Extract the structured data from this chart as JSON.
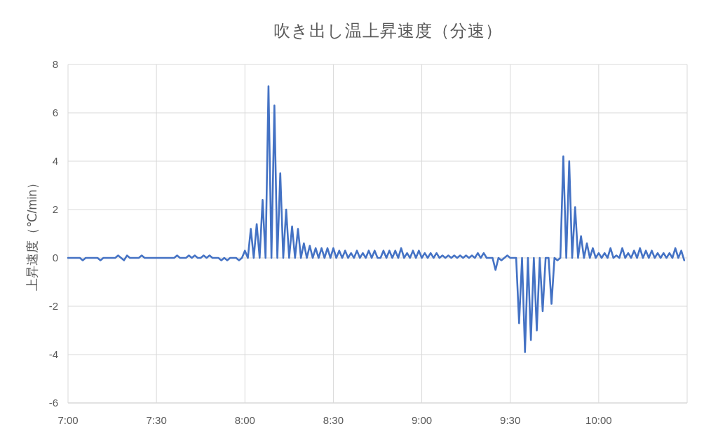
{
  "chart_data": {
    "type": "line",
    "title": "吹き出し温上昇速度（分速）",
    "ylabel": "上昇速度（℃/min）",
    "x": [
      7.0,
      7.0667,
      7.0833,
      7.1,
      7.1667,
      7.1833,
      7.2,
      7.2667,
      7.2833,
      7.3,
      7.3167,
      7.3333,
      7.35,
      7.4,
      7.4167,
      7.4333,
      7.6,
      7.6167,
      7.6333,
      7.6667,
      7.6833,
      7.7,
      7.7167,
      7.7333,
      7.75,
      7.7667,
      7.7833,
      7.8,
      7.8167,
      7.85,
      7.8667,
      7.8833,
      7.9,
      7.9167,
      7.95,
      7.9667,
      7.9833,
      8.0,
      8.0167,
      8.0333,
      8.05,
      8.0667,
      8.0833,
      8.1,
      8.1167,
      8.1333,
      8.15,
      8.1667,
      8.1833,
      8.2,
      8.2167,
      8.2333,
      8.25,
      8.2667,
      8.2833,
      8.3,
      8.3167,
      8.3333,
      8.35,
      8.3667,
      8.3833,
      8.4,
      8.4167,
      8.4333,
      8.45,
      8.4667,
      8.4833,
      8.5,
      8.5167,
      8.5333,
      8.55,
      8.5667,
      8.5833,
      8.6,
      8.6167,
      8.6333,
      8.65,
      8.6667,
      8.6833,
      8.7,
      8.7167,
      8.7333,
      8.75,
      8.7667,
      8.7833,
      8.8,
      8.8167,
      8.8333,
      8.85,
      8.8667,
      8.8833,
      8.9,
      8.9167,
      8.9333,
      8.95,
      8.9667,
      8.9833,
      9.0,
      9.0167,
      9.0333,
      9.05,
      9.0667,
      9.0833,
      9.1,
      9.1167,
      9.1333,
      9.15,
      9.1667,
      9.1833,
      9.2,
      9.2167,
      9.2333,
      9.25,
      9.2667,
      9.2833,
      9.3,
      9.3167,
      9.3333,
      9.35,
      9.3667,
      9.4,
      9.4167,
      9.4333,
      9.45,
      9.4667,
      9.4833,
      9.5,
      9.5333,
      9.55,
      9.5667,
      9.5833,
      9.6,
      9.6167,
      9.6333,
      9.65,
      9.6667,
      9.6833,
      9.7,
      9.7167,
      9.7333,
      9.75,
      9.7667,
      9.7833,
      9.8,
      9.8167,
      9.8333,
      9.85,
      9.8667,
      9.8833,
      9.9,
      9.9167,
      9.9333,
      9.95,
      9.9667,
      9.9833,
      10.0,
      10.0167,
      10.0333,
      10.05,
      10.0667,
      10.0833,
      10.1,
      10.1167,
      10.1333,
      10.15,
      10.1667,
      10.1833,
      10.2,
      10.2167,
      10.2333,
      10.25,
      10.2667,
      10.2833,
      10.3,
      10.3167,
      10.3333,
      10.35,
      10.3667,
      10.3833,
      10.4,
      10.4167,
      10.4333,
      10.45,
      10.4667,
      10.4833
    ],
    "series": [
      {
        "color": "#4472c4",
        "values": [
          0,
          0,
          -0.1,
          0,
          0,
          -0.1,
          0,
          0,
          0.1,
          0,
          -0.1,
          0.1,
          0,
          0,
          0.1,
          0,
          0,
          0.1,
          0,
          0,
          0.1,
          0,
          0.1,
          0,
          0,
          0.1,
          0,
          0.1,
          0,
          0,
          -0.1,
          0,
          -0.1,
          0,
          0,
          -0.1,
          0,
          0.3,
          0,
          1.2,
          0,
          1.4,
          0,
          2.4,
          0,
          7.1,
          0,
          6.3,
          0,
          3.5,
          0,
          2.0,
          0,
          1.3,
          0,
          1.2,
          0,
          0.6,
          0,
          0.5,
          0,
          0.4,
          0,
          0.4,
          0,
          0.4,
          0,
          0.4,
          0,
          0.3,
          0,
          0.3,
          0,
          0.2,
          0,
          0.3,
          0,
          0.2,
          0,
          0.3,
          0,
          0.3,
          0,
          0,
          0.3,
          0,
          0.3,
          0,
          0.3,
          0,
          0.4,
          0,
          0.2,
          0,
          0.3,
          0,
          0.3,
          0,
          0.2,
          0,
          0.2,
          0,
          0.2,
          0,
          0.1,
          0,
          0.1,
          0,
          0.1,
          0,
          0.1,
          0,
          0.1,
          0,
          0.1,
          0,
          0.2,
          0,
          0.2,
          0,
          0,
          -0.5,
          0,
          -0.1,
          0,
          0.1,
          0,
          0,
          -2.7,
          0,
          -3.9,
          0,
          -3.4,
          0,
          -3.0,
          0,
          -2.2,
          0,
          0,
          -1.9,
          0,
          -0.1,
          0,
          4.2,
          0,
          4.0,
          0,
          2.1,
          0,
          0.9,
          0,
          0.6,
          0,
          0.4,
          0,
          0.2,
          0,
          0.2,
          0,
          0.4,
          0,
          0.1,
          0,
          0.4,
          0,
          0.2,
          0,
          0.3,
          0,
          0.4,
          0,
          0.3,
          0,
          0.3,
          0,
          0.2,
          0,
          0.2,
          0,
          0.2,
          0,
          0.4,
          0,
          0.3,
          -0.1
        ]
      }
    ],
    "xlim": [
      7,
      10.5
    ],
    "xticks": [
      {
        "value": 7,
        "label": "7:00"
      },
      {
        "value": 7.5,
        "label": "7:30"
      },
      {
        "value": 8,
        "label": "8:00"
      },
      {
        "value": 8.5,
        "label": "8:30"
      },
      {
        "value": 9,
        "label": "9:00"
      },
      {
        "value": 9.5,
        "label": "9:30"
      },
      {
        "value": 10,
        "label": "10:00"
      }
    ],
    "ylim": [
      -6,
      8
    ],
    "yticks": [
      -6,
      -4,
      -2,
      0,
      2,
      4,
      6,
      8
    ],
    "grid": true
  }
}
